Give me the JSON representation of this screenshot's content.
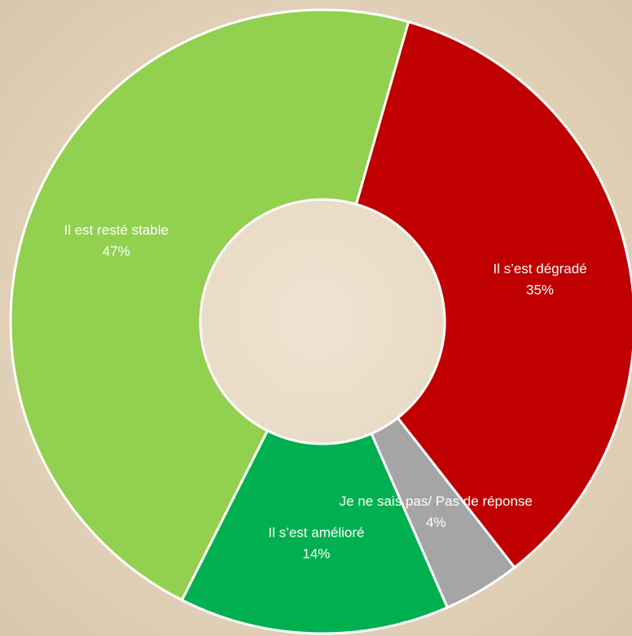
{
  "chart_data": {
    "type": "donut",
    "categories": [
      "Il s’est dégradé",
      "Je ne sais pas/ Pas de réponse",
      "Il s’est amélioré",
      "Il est resté stable"
    ],
    "values": [
      35,
      4,
      14,
      47
    ],
    "value_labels": [
      "35%",
      "4%",
      "14%",
      "47%"
    ],
    "colors": [
      "#c00000",
      "#a5a5a5",
      "#00b050",
      "#92d050"
    ]
  }
}
